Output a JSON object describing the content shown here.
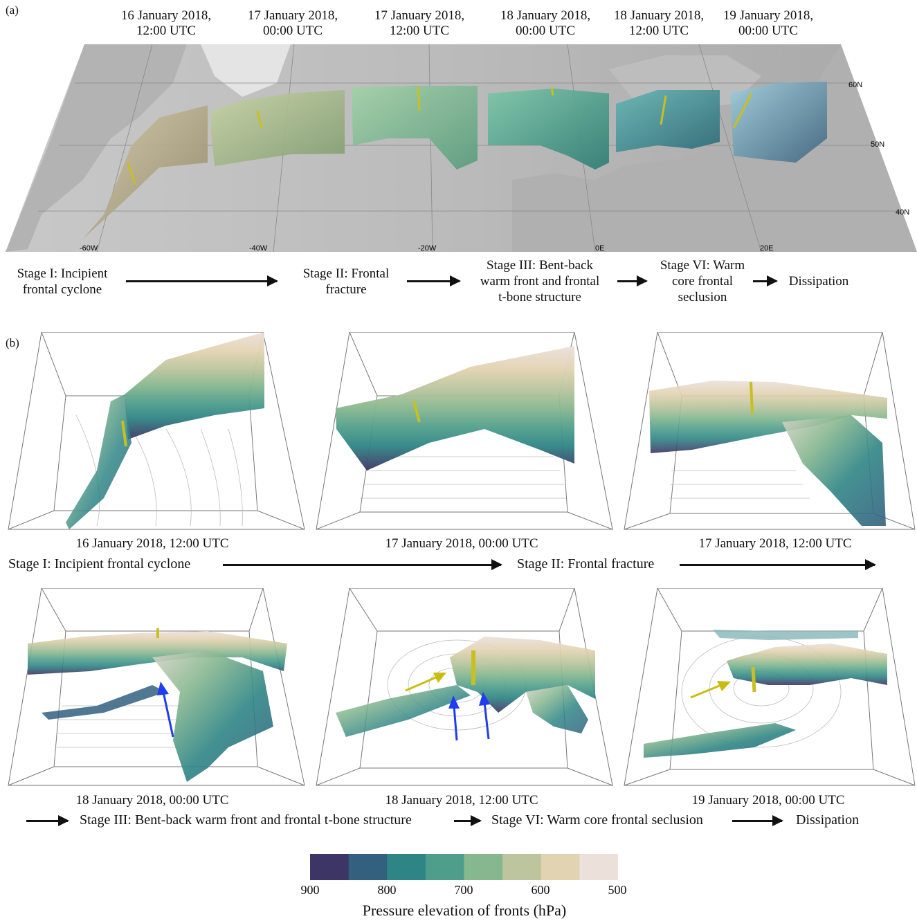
{
  "panel_a": {
    "letter": "(a)",
    "dates": [
      {
        "line1": "16 January 2018,",
        "line2": "12:00 UTC"
      },
      {
        "line1": "17 January 2018,",
        "line2": "00:00 UTC"
      },
      {
        "line1": "17 January 2018,",
        "line2": "12:00 UTC"
      },
      {
        "line1": "18 January 2018,",
        "line2": "00:00 UTC"
      },
      {
        "line1": "18 January 2018,",
        "line2": "12:00 UTC"
      },
      {
        "line1": "19 January 2018,",
        "line2": "00:00 UTC"
      }
    ],
    "lat_labels": [
      "60N",
      "50N",
      "40N"
    ],
    "lon_labels": [
      "-60W",
      "-40W",
      "-20W",
      "0E",
      "20E"
    ],
    "stages": [
      {
        "l1": "Stage I: Incipient",
        "l2": "frontal cyclone",
        "l3": ""
      },
      {
        "l1": "Stage II: Frontal",
        "l2": "fracture",
        "l3": ""
      },
      {
        "l1": "Stage III: Bent-back",
        "l2": "warm front and frontal",
        "l3": "t-bone structure"
      },
      {
        "l1": "Stage VI: Warm",
        "l2": "core frontal",
        "l3": "seclusion"
      },
      {
        "l1": "Dissipation",
        "l2": "",
        "l3": ""
      }
    ]
  },
  "panel_b": {
    "letter": "(b)",
    "row1_captions": [
      "16 January 2018, 12:00 UTC",
      "17 January 2018, 00:00 UTC",
      "17 January 2018, 12:00 UTC"
    ],
    "row1_stage1": "Stage I: Incipient frontal cyclone",
    "row1_stage2": "Stage II: Frontal fracture",
    "row2_captions": [
      "18 January 2018, 00:00 UTC",
      "18 January 2018, 12:00 UTC",
      "19 January 2018, 00:00 UTC"
    ],
    "row2_stage3": "Stage III: Bent-back warm front and frontal t-bone structure",
    "row2_stage4": "Stage VI: Warm core frontal seclusion",
    "row2_stage5": "Dissipation"
  },
  "colorbar": {
    "colors": [
      "#3d3566",
      "#33607f",
      "#2f8585",
      "#4f9e8c",
      "#86b78f",
      "#bcc59d",
      "#e2d3b2",
      "#ece0db"
    ],
    "ticks": [
      "900",
      "800",
      "700",
      "600",
      "500"
    ],
    "title": "Pressure elevation of fronts (hPa)"
  },
  "colors": {
    "front_dark": "#3d3566",
    "front_teal": "#2f8585",
    "front_green": "#86b78f",
    "front_tan": "#bcb49a",
    "marker_yellow": "#c8c020",
    "blue_arrow": "#1f3df0",
    "yellow_arrow": "#c9be10"
  }
}
